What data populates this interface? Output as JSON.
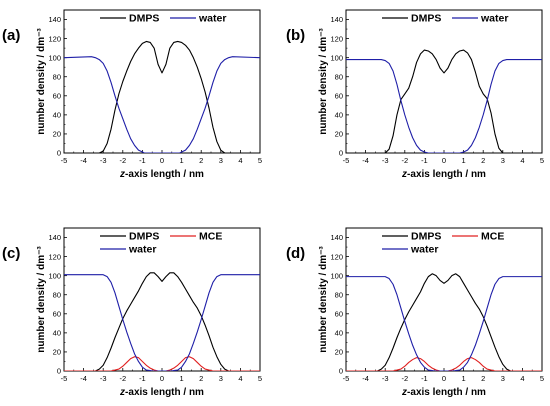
{
  "chart_data": [
    {
      "type": "line",
      "panel_label": "(a)",
      "xlabel_italic": "z",
      "xlabel_rest": "-axis length / nm",
      "ylabel": "number density / dm⁻³",
      "xlim": [
        -5,
        5
      ],
      "ylim": [
        0,
        150
      ],
      "xticks": [
        -5,
        -4,
        -3,
        -2,
        -1,
        0,
        1,
        2,
        3,
        4,
        5
      ],
      "yticks": [
        0,
        20,
        40,
        60,
        80,
        100,
        120,
        140
      ],
      "grid": false,
      "legend": "top-center",
      "series": [
        {
          "name": "DMPS",
          "color": "#000000",
          "x": [
            -5,
            -3.2,
            -3.0,
            -2.8,
            -2.6,
            -2.4,
            -2.2,
            -2.0,
            -1.8,
            -1.6,
            -1.4,
            -1.2,
            -1.0,
            -0.8,
            -0.6,
            -0.4,
            -0.2,
            0.0,
            0.2,
            0.4,
            0.6,
            0.8,
            1.0,
            1.2,
            1.4,
            1.6,
            1.8,
            2.0,
            2.2,
            2.4,
            2.6,
            2.8,
            3.0,
            3.2,
            5
          ],
          "y": [
            0,
            0,
            2,
            10,
            25,
            45,
            62,
            75,
            86,
            96,
            104,
            110,
            115,
            117,
            116,
            110,
            93,
            84,
            93,
            110,
            116,
            117,
            116,
            113,
            108,
            100,
            90,
            78,
            64,
            47,
            27,
            12,
            3,
            0,
            0
          ]
        },
        {
          "name": "water",
          "color": "#1f1fa8",
          "x": [
            -5,
            -3.6,
            -3.4,
            -3.2,
            -3.0,
            -2.8,
            -2.6,
            -2.4,
            -2.2,
            -2.0,
            -1.8,
            -1.6,
            -1.4,
            -1.2,
            -1.0,
            -0.9,
            0.9,
            1.0,
            1.2,
            1.4,
            1.6,
            1.8,
            2.0,
            2.2,
            2.4,
            2.6,
            2.8,
            3.0,
            3.2,
            3.4,
            3.6,
            5
          ],
          "y": [
            100,
            101,
            100,
            98,
            94,
            86,
            74,
            60,
            47,
            36,
            25,
            15,
            8,
            3,
            1,
            0,
            0,
            1,
            3,
            8,
            15,
            25,
            36,
            47,
            60,
            74,
            86,
            94,
            98,
            100,
            101,
            100
          ]
        }
      ]
    },
    {
      "type": "line",
      "panel_label": "(b)",
      "xlabel_italic": "z",
      "xlabel_rest": "-axis length / nm",
      "ylabel": "number density / dm⁻³",
      "xlim": [
        -5,
        5
      ],
      "ylim": [
        0,
        150
      ],
      "xticks": [
        -5,
        -4,
        -3,
        -2,
        -1,
        0,
        1,
        2,
        3,
        4,
        5
      ],
      "yticks": [
        0,
        20,
        40,
        60,
        80,
        100,
        120,
        140
      ],
      "grid": false,
      "legend": "top-center",
      "series": [
        {
          "name": "DMPS",
          "color": "#000000",
          "x": [
            -5,
            -3.0,
            -2.8,
            -2.6,
            -2.4,
            -2.2,
            -2.0,
            -1.8,
            -1.6,
            -1.4,
            -1.2,
            -1.0,
            -0.8,
            -0.6,
            -0.4,
            -0.2,
            0.0,
            0.2,
            0.4,
            0.6,
            0.8,
            1.0,
            1.2,
            1.4,
            1.6,
            1.8,
            2.0,
            2.2,
            2.4,
            2.6,
            2.8,
            3.0,
            5
          ],
          "y": [
            0,
            0,
            4,
            18,
            40,
            56,
            62,
            68,
            80,
            95,
            104,
            108,
            107,
            104,
            98,
            89,
            84,
            89,
            98,
            104,
            107,
            108,
            105,
            98,
            85,
            70,
            62,
            57,
            42,
            20,
            5,
            0,
            0
          ]
        },
        {
          "name": "water",
          "color": "#1f1fa8",
          "x": [
            -5,
            -3.2,
            -3.0,
            -2.8,
            -2.6,
            -2.4,
            -2.2,
            -2.0,
            -1.8,
            -1.6,
            -1.4,
            -1.2,
            -1.0,
            -0.8,
            0.8,
            1.0,
            1.2,
            1.4,
            1.6,
            1.8,
            2.0,
            2.2,
            2.4,
            2.6,
            2.8,
            3.0,
            3.2,
            5
          ],
          "y": [
            98,
            98,
            97,
            94,
            86,
            72,
            55,
            40,
            27,
            16,
            8,
            3,
            1,
            0,
            0,
            1,
            3,
            8,
            16,
            27,
            40,
            55,
            72,
            86,
            94,
            97,
            98,
            98
          ]
        }
      ]
    },
    {
      "type": "line",
      "panel_label": "(c)",
      "xlabel_italic": "z",
      "xlabel_rest": "-axis length / nm",
      "ylabel": "number density / dm⁻³",
      "xlim": [
        -5,
        5
      ],
      "ylim": [
        0,
        150
      ],
      "xticks": [
        -5,
        -4,
        -3,
        -2,
        -1,
        0,
        1,
        2,
        3,
        4,
        5
      ],
      "yticks": [
        0,
        20,
        40,
        60,
        80,
        100,
        120,
        140
      ],
      "grid": false,
      "legend": "top-center",
      "series": [
        {
          "name": "DMPS",
          "color": "#000000",
          "x": [
            -5,
            -3.4,
            -3.2,
            -3.0,
            -2.8,
            -2.6,
            -2.4,
            -2.2,
            -2.0,
            -1.8,
            -1.6,
            -1.4,
            -1.2,
            -1.0,
            -0.8,
            -0.6,
            -0.4,
            -0.2,
            0.0,
            0.2,
            0.4,
            0.6,
            0.8,
            1.0,
            1.2,
            1.4,
            1.6,
            1.8,
            2.0,
            2.2,
            2.4,
            2.6,
            2.8,
            3.0,
            3.2,
            3.4,
            5
          ],
          "y": [
            0,
            0,
            2,
            6,
            14,
            24,
            35,
            45,
            55,
            63,
            70,
            77,
            84,
            92,
            99,
            103,
            103,
            99,
            94,
            99,
            103,
            103,
            99,
            93,
            86,
            79,
            72,
            66,
            58,
            48,
            37,
            25,
            15,
            7,
            2,
            0,
            0
          ]
        },
        {
          "name": "MCE",
          "color": "#e02020",
          "x": [
            -5,
            -2.6,
            -2.4,
            -2.2,
            -2.0,
            -1.8,
            -1.6,
            -1.4,
            -1.2,
            -1.0,
            -0.8,
            -0.6,
            -0.4,
            -0.2,
            0.2,
            0.4,
            0.6,
            0.8,
            1.0,
            1.2,
            1.4,
            1.6,
            1.8,
            2.0,
            2.2,
            2.4,
            2.6,
            5
          ],
          "y": [
            0,
            0,
            1,
            2,
            5,
            9,
            13,
            15,
            14,
            10,
            6,
            3,
            1,
            0,
            0,
            1,
            3,
            6,
            10,
            14,
            15,
            13,
            9,
            5,
            2,
            1,
            0,
            0
          ]
        },
        {
          "name": "water",
          "color": "#1f1fa8",
          "x": [
            -5,
            -3.0,
            -2.8,
            -2.6,
            -2.4,
            -2.2,
            -2.0,
            -1.8,
            -1.6,
            -1.4,
            -1.2,
            -1.0,
            -0.8,
            -0.6,
            -0.5,
            0.5,
            0.6,
            0.8,
            1.0,
            1.2,
            1.4,
            1.6,
            1.8,
            2.0,
            2.2,
            2.4,
            2.6,
            2.8,
            3.0,
            5
          ],
          "y": [
            101,
            101,
            99,
            93,
            82,
            68,
            54,
            41,
            29,
            18,
            10,
            4,
            1,
            0.5,
            0,
            0,
            0.5,
            1,
            4,
            10,
            18,
            29,
            41,
            54,
            68,
            82,
            93,
            99,
            101,
            101
          ]
        }
      ]
    },
    {
      "type": "line",
      "panel_label": "(d)",
      "xlabel_italic": "z",
      "xlabel_rest": "-axis length / nm",
      "ylabel": "number density / dm⁻³",
      "xlim": [
        -5,
        5
      ],
      "ylim": [
        0,
        150
      ],
      "xticks": [
        -5,
        -4,
        -3,
        -2,
        -1,
        0,
        1,
        2,
        3,
        4,
        5
      ],
      "yticks": [
        0,
        20,
        40,
        60,
        80,
        100,
        120,
        140
      ],
      "grid": false,
      "legend": "top-center",
      "series": [
        {
          "name": "DMPS",
          "color": "#000000",
          "x": [
            -5,
            -3.4,
            -3.2,
            -3.0,
            -2.8,
            -2.6,
            -2.4,
            -2.2,
            -2.0,
            -1.8,
            -1.6,
            -1.4,
            -1.2,
            -1.0,
            -0.8,
            -0.6,
            -0.4,
            -0.2,
            0.0,
            0.2,
            0.4,
            0.6,
            0.8,
            1.0,
            1.2,
            1.4,
            1.6,
            1.8,
            2.0,
            2.2,
            2.4,
            2.6,
            2.8,
            3.0,
            3.2,
            3.4,
            5
          ],
          "y": [
            0,
            0,
            2,
            6,
            14,
            24,
            35,
            45,
            54,
            62,
            69,
            76,
            83,
            92,
            99,
            102,
            100,
            95,
            92,
            95,
            100,
            102,
            99,
            92,
            85,
            78,
            71,
            65,
            57,
            47,
            36,
            25,
            15,
            7,
            2,
            0,
            0
          ]
        },
        {
          "name": "MCE",
          "color": "#e02020",
          "x": [
            -5,
            -2.6,
            -2.4,
            -2.2,
            -2.0,
            -1.8,
            -1.6,
            -1.4,
            -1.2,
            -1.0,
            -0.8,
            -0.6,
            -0.4,
            -0.2,
            0.2,
            0.4,
            0.6,
            0.8,
            1.0,
            1.2,
            1.4,
            1.6,
            1.8,
            2.0,
            2.2,
            2.4,
            2.6,
            5
          ],
          "y": [
            0,
            0,
            1,
            2,
            5,
            9,
            12,
            14,
            13,
            10,
            6,
            3,
            1,
            0,
            0,
            1,
            3,
            6,
            10,
            13,
            14,
            12,
            9,
            5,
            2,
            1,
            0,
            0
          ]
        },
        {
          "name": "water",
          "color": "#1f1fa8",
          "x": [
            -5,
            -3.0,
            -2.8,
            -2.6,
            -2.4,
            -2.2,
            -2.0,
            -1.8,
            -1.6,
            -1.4,
            -1.2,
            -1.0,
            -0.8,
            -0.6,
            -0.5,
            0.5,
            0.6,
            0.8,
            1.0,
            1.2,
            1.4,
            1.6,
            1.8,
            2.0,
            2.2,
            2.4,
            2.6,
            2.8,
            3.0,
            5
          ],
          "y": [
            99,
            99,
            97,
            91,
            80,
            66,
            52,
            39,
            27,
            17,
            9,
            4,
            1,
            0.5,
            0,
            0,
            0.5,
            1,
            4,
            9,
            17,
            27,
            39,
            52,
            66,
            80,
            91,
            97,
            99,
            99
          ]
        }
      ]
    }
  ]
}
